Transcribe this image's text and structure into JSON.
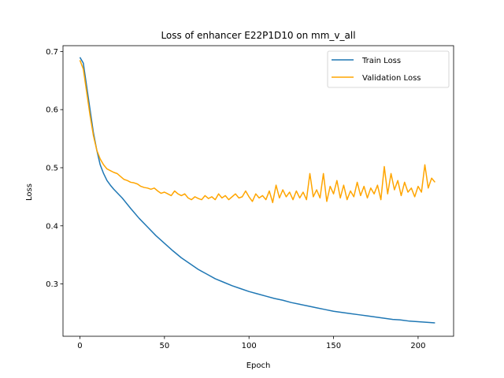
{
  "chart_data": {
    "type": "line",
    "title": "Loss of enhancer E22P1D10 on mm_v_all",
    "xlabel": "Epoch",
    "ylabel": "Loss",
    "xlim": [
      -10,
      221
    ],
    "ylim": [
      0.21,
      0.71
    ],
    "xticks": [
      0,
      50,
      100,
      150,
      200
    ],
    "yticks": [
      0.3,
      0.4,
      0.5,
      0.6,
      0.7
    ],
    "grid": false,
    "legend_position": "top-right",
    "series": [
      {
        "name": "Train Loss",
        "color": "#1f77b4",
        "x": [
          0,
          2,
          4,
          6,
          8,
          10,
          12,
          14,
          16,
          18,
          20,
          25,
          30,
          35,
          40,
          45,
          50,
          55,
          60,
          65,
          70,
          75,
          80,
          85,
          90,
          95,
          100,
          105,
          110,
          115,
          120,
          125,
          130,
          135,
          140,
          145,
          150,
          155,
          160,
          165,
          170,
          175,
          180,
          185,
          190,
          195,
          200,
          205,
          210
        ],
        "values": [
          0.69,
          0.68,
          0.64,
          0.6,
          0.56,
          0.53,
          0.505,
          0.49,
          0.478,
          0.47,
          0.463,
          0.448,
          0.43,
          0.413,
          0.398,
          0.383,
          0.37,
          0.357,
          0.345,
          0.335,
          0.325,
          0.317,
          0.309,
          0.303,
          0.297,
          0.292,
          0.287,
          0.283,
          0.279,
          0.275,
          0.272,
          0.268,
          0.265,
          0.262,
          0.259,
          0.256,
          0.253,
          0.251,
          0.249,
          0.247,
          0.245,
          0.243,
          0.241,
          0.239,
          0.238,
          0.236,
          0.235,
          0.234,
          0.233
        ]
      },
      {
        "name": "Validation Loss",
        "color": "#ffa500",
        "x": [
          0,
          2,
          4,
          6,
          8,
          10,
          12,
          14,
          16,
          18,
          20,
          22,
          24,
          26,
          28,
          30,
          32,
          34,
          36,
          38,
          40,
          42,
          44,
          46,
          48,
          50,
          52,
          54,
          56,
          58,
          60,
          62,
          64,
          66,
          68,
          70,
          72,
          74,
          76,
          78,
          80,
          82,
          84,
          86,
          88,
          90,
          92,
          94,
          96,
          98,
          100,
          102,
          104,
          106,
          108,
          110,
          112,
          114,
          116,
          118,
          120,
          122,
          124,
          126,
          128,
          130,
          132,
          134,
          136,
          138,
          140,
          142,
          144,
          146,
          148,
          150,
          152,
          154,
          156,
          158,
          160,
          162,
          164,
          166,
          168,
          170,
          172,
          174,
          176,
          178,
          180,
          182,
          184,
          186,
          188,
          190,
          192,
          194,
          196,
          198,
          200,
          202,
          204,
          206,
          208,
          210
        ],
        "values": [
          0.685,
          0.67,
          0.63,
          0.59,
          0.555,
          0.53,
          0.515,
          0.505,
          0.498,
          0.495,
          0.492,
          0.49,
          0.485,
          0.48,
          0.478,
          0.475,
          0.474,
          0.472,
          0.468,
          0.466,
          0.465,
          0.463,
          0.465,
          0.46,
          0.456,
          0.458,
          0.455,
          0.452,
          0.46,
          0.455,
          0.452,
          0.455,
          0.448,
          0.445,
          0.45,
          0.447,
          0.445,
          0.452,
          0.447,
          0.45,
          0.445,
          0.455,
          0.448,
          0.452,
          0.445,
          0.45,
          0.455,
          0.448,
          0.45,
          0.46,
          0.45,
          0.442,
          0.455,
          0.448,
          0.452,
          0.445,
          0.46,
          0.44,
          0.47,
          0.448,
          0.462,
          0.45,
          0.458,
          0.445,
          0.46,
          0.448,
          0.458,
          0.445,
          0.49,
          0.45,
          0.462,
          0.448,
          0.49,
          0.442,
          0.468,
          0.455,
          0.478,
          0.448,
          0.47,
          0.445,
          0.46,
          0.45,
          0.475,
          0.452,
          0.468,
          0.448,
          0.465,
          0.455,
          0.47,
          0.445,
          0.502,
          0.455,
          0.49,
          0.462,
          0.478,
          0.452,
          0.475,
          0.458,
          0.465,
          0.45,
          0.468,
          0.458,
          0.505,
          0.465,
          0.482,
          0.475
        ]
      }
    ]
  }
}
